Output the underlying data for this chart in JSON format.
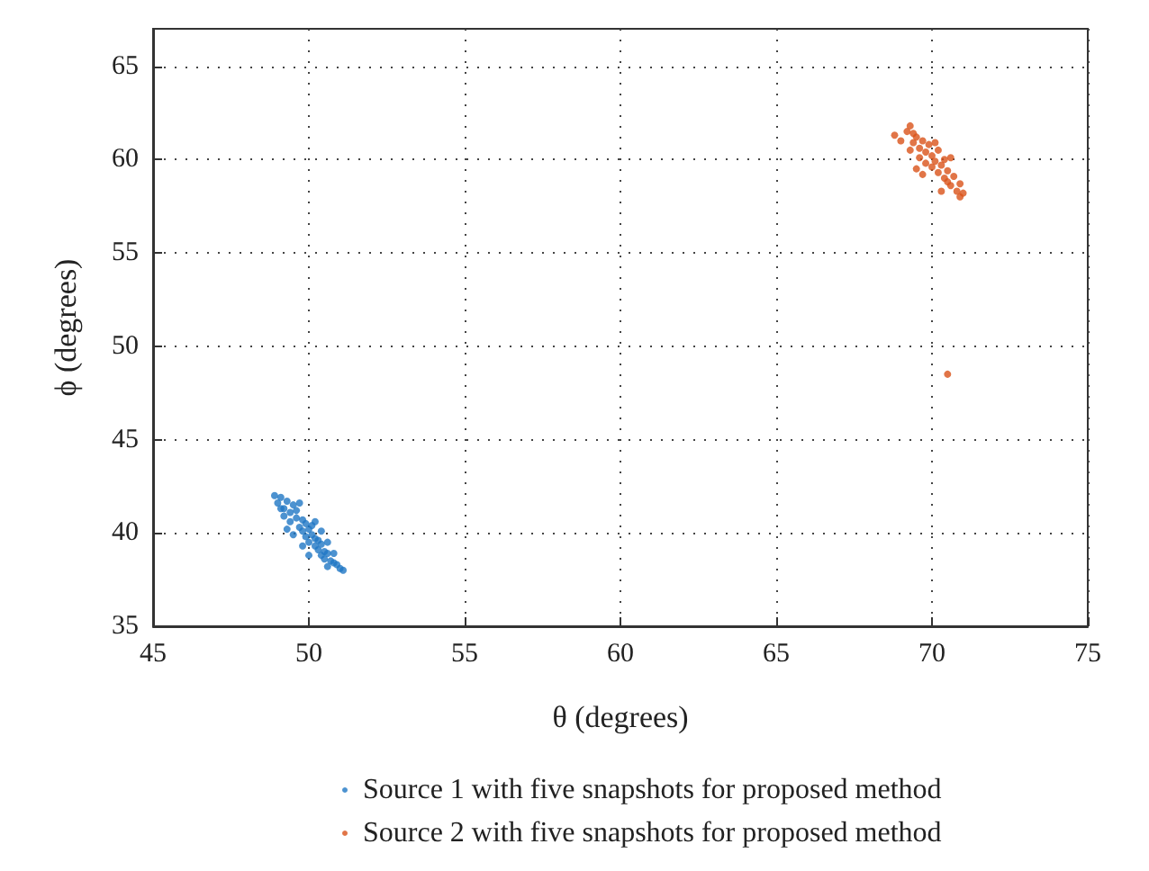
{
  "chart_data": {
    "type": "scatter",
    "xlabel": "θ (degrees)",
    "ylabel": "ϕ (degrees)",
    "xlim": [
      45,
      75
    ],
    "xticks": [
      45,
      50,
      55,
      60,
      65,
      70,
      75
    ],
    "ylim": [
      35,
      67
    ],
    "yticks": [
      35,
      40,
      45,
      50,
      55,
      60,
      65
    ],
    "grid": true,
    "legend": "bottom",
    "marker": "circle",
    "series": [
      {
        "name": "Source 1 with five snapshots for proposed method",
        "color": "#1f77c4",
        "x": [
          48.9,
          49.0,
          49.1,
          49.2,
          49.3,
          49.2,
          49.4,
          49.5,
          49.4,
          49.6,
          49.6,
          49.7,
          49.8,
          49.8,
          49.9,
          49.9,
          50.0,
          50.0,
          50.1,
          50.1,
          50.2,
          50.2,
          50.3,
          50.3,
          50.4,
          50.4,
          50.5,
          50.5,
          50.6,
          50.7,
          50.8,
          50.9,
          51.0,
          51.1,
          50.6,
          49.3,
          50.0,
          49.7,
          50.4,
          49.5,
          50.8,
          49.1,
          50.2,
          49.8,
          50.6
        ],
        "values": [
          42.0,
          41.6,
          41.9,
          41.3,
          41.7,
          40.9,
          41.1,
          41.5,
          40.6,
          40.8,
          41.2,
          40.3,
          40.7,
          40.1,
          40.5,
          39.8,
          40.2,
          39.5,
          39.9,
          40.4,
          39.3,
          39.7,
          39.1,
          39.6,
          38.8,
          39.4,
          39.0,
          38.6,
          38.9,
          38.5,
          38.4,
          38.3,
          38.1,
          38.0,
          39.5,
          40.2,
          38.8,
          41.6,
          40.1,
          39.9,
          38.9,
          41.3,
          40.6,
          39.3,
          38.2
        ]
      },
      {
        "name": "Source 2 with five snapshots for proposed method",
        "color": "#d95319",
        "x": [
          68.8,
          69.0,
          69.2,
          69.3,
          69.4,
          69.5,
          69.3,
          69.6,
          69.7,
          69.6,
          69.8,
          69.9,
          69.8,
          70.0,
          70.0,
          70.1,
          70.2,
          70.2,
          70.3,
          70.4,
          70.5,
          70.5,
          70.6,
          70.7,
          70.8,
          70.9,
          71.0,
          70.3,
          69.5,
          70.6,
          69.4,
          70.1,
          69.7,
          70.4,
          70.9,
          70.5
        ],
        "values": [
          61.3,
          61.0,
          61.5,
          61.8,
          60.9,
          61.2,
          60.5,
          60.6,
          61.0,
          60.1,
          60.4,
          60.8,
          59.8,
          60.2,
          59.6,
          59.9,
          60.5,
          59.3,
          59.7,
          59.0,
          59.4,
          58.8,
          58.6,
          59.1,
          58.3,
          58.0,
          58.2,
          58.3,
          59.5,
          60.1,
          61.4,
          60.9,
          59.2,
          60.0,
          58.7,
          48.5
        ]
      }
    ]
  }
}
